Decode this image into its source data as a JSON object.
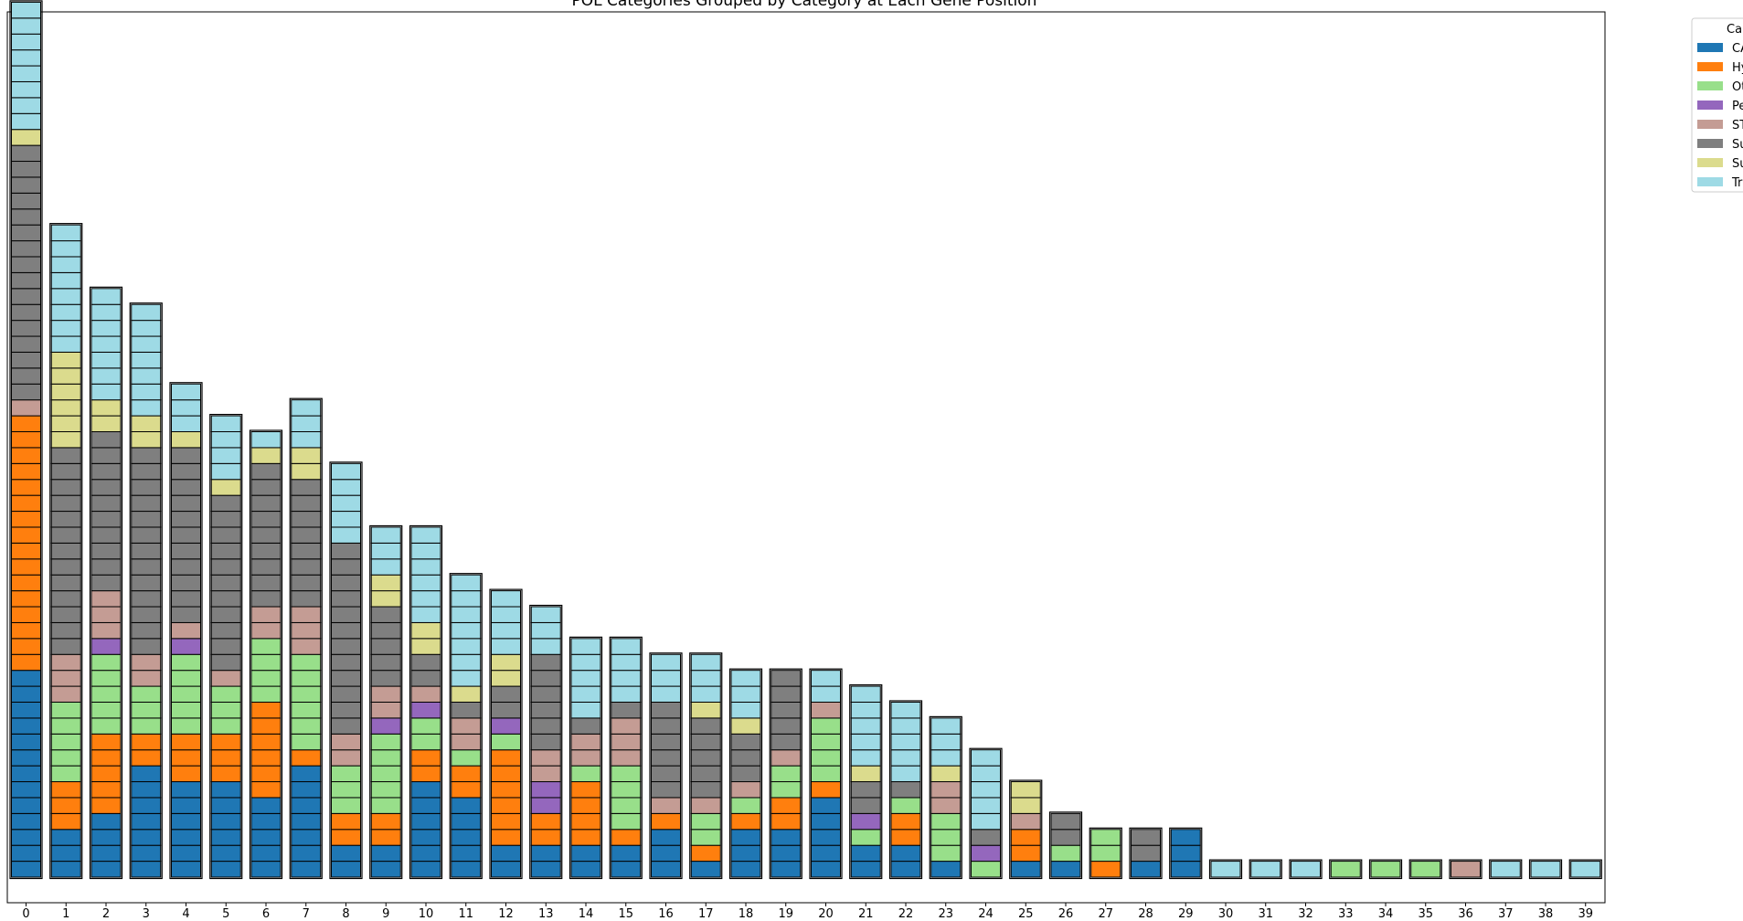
{
  "chart_data": {
    "type": "bar",
    "title": "POL Categories Grouped by Category at Each Gene Position",
    "xlabel": "",
    "ylabel": "",
    "categories": [
      "0",
      "1",
      "2",
      "3",
      "4",
      "5",
      "6",
      "7",
      "8",
      "9",
      "10",
      "11",
      "12",
      "13",
      "14",
      "15",
      "16",
      "17",
      "18",
      "19",
      "20",
      "21",
      "22",
      "23",
      "24",
      "25",
      "26",
      "27",
      "28",
      "29",
      "30",
      "31",
      "32",
      "33",
      "34",
      "35",
      "36",
      "37",
      "38",
      "39"
    ],
    "legend": {
      "title": "Ca",
      "placement": "outside-top-right",
      "entries": [
        "CA",
        "Hy",
        "Ot",
        "Pe",
        "ST",
        "Su",
        "Su",
        "Tr"
      ]
    },
    "colors": [
      "#1f77b4",
      "#ff7f0e",
      "#98df8a",
      "#9467bd",
      "#c49c94",
      "#7f7f7f",
      "#dbdb8d",
      "#9edae5"
    ],
    "stacks": [
      [
        0,
        0,
        0,
        0,
        0,
        0,
        0,
        0,
        0,
        0,
        0,
        0,
        0,
        1,
        1,
        1,
        1,
        1,
        1,
        1,
        1,
        1,
        1,
        1,
        1,
        1,
        1,
        1,
        1,
        4,
        5,
        5,
        5,
        5,
        5,
        5,
        5,
        5,
        5,
        5,
        5,
        5,
        5,
        5,
        5,
        5,
        6,
        7,
        7,
        7,
        7,
        7,
        7,
        7,
        7
      ],
      [
        0,
        0,
        0,
        1,
        1,
        1,
        2,
        2,
        2,
        2,
        2,
        4,
        4,
        4,
        5,
        5,
        5,
        5,
        5,
        5,
        5,
        5,
        5,
        5,
        5,
        5,
        5,
        6,
        6,
        6,
        6,
        6,
        6,
        7,
        7,
        7,
        7,
        7,
        7,
        7,
        7
      ],
      [
        0,
        0,
        0,
        0,
        1,
        1,
        1,
        1,
        1,
        2,
        2,
        2,
        2,
        2,
        3,
        4,
        4,
        4,
        5,
        5,
        5,
        5,
        5,
        5,
        5,
        5,
        5,
        5,
        6,
        6,
        7,
        7,
        7,
        7,
        7,
        7,
        7
      ],
      [
        0,
        0,
        0,
        0,
        0,
        0,
        0,
        1,
        1,
        2,
        2,
        2,
        4,
        4,
        5,
        5,
        5,
        5,
        5,
        5,
        5,
        5,
        5,
        5,
        5,
        5,
        5,
        6,
        6,
        7,
        7,
        7,
        7,
        7,
        7,
        7
      ],
      [
        0,
        0,
        0,
        0,
        0,
        0,
        1,
        1,
        1,
        2,
        2,
        2,
        2,
        2,
        3,
        4,
        5,
        5,
        5,
        5,
        5,
        5,
        5,
        5,
        5,
        5,
        5,
        6,
        7,
        7,
        7
      ],
      [
        0,
        0,
        0,
        0,
        0,
        0,
        1,
        1,
        1,
        2,
        2,
        2,
        4,
        5,
        5,
        5,
        5,
        5,
        5,
        5,
        5,
        5,
        5,
        5,
        6,
        7,
        7,
        7,
        7
      ],
      [
        0,
        0,
        0,
        0,
        0,
        1,
        1,
        1,
        1,
        1,
        1,
        2,
        2,
        2,
        2,
        4,
        4,
        5,
        5,
        5,
        5,
        5,
        5,
        5,
        5,
        5,
        6,
        7
      ],
      [
        0,
        0,
        0,
        0,
        0,
        0,
        0,
        1,
        2,
        2,
        2,
        2,
        2,
        2,
        4,
        4,
        4,
        5,
        5,
        5,
        5,
        5,
        5,
        5,
        5,
        6,
        6,
        7,
        7,
        7
      ],
      [
        0,
        0,
        1,
        1,
        2,
        2,
        2,
        4,
        4,
        5,
        5,
        5,
        5,
        5,
        5,
        5,
        5,
        5,
        5,
        5,
        5,
        7,
        7,
        7,
        7,
        7
      ],
      [
        0,
        0,
        1,
        1,
        2,
        2,
        2,
        2,
        2,
        3,
        4,
        4,
        5,
        5,
        5,
        5,
        5,
        6,
        6,
        7,
        7,
        7
      ],
      [
        0,
        0,
        0,
        0,
        0,
        0,
        1,
        1,
        2,
        2,
        3,
        4,
        5,
        5,
        6,
        6,
        7,
        7,
        7,
        7,
        7,
        7
      ],
      [
        0,
        0,
        0,
        0,
        0,
        1,
        1,
        2,
        4,
        4,
        5,
        6,
        7,
        7,
        7,
        7,
        7,
        7,
        7
      ],
      [
        0,
        0,
        1,
        1,
        1,
        1,
        1,
        1,
        2,
        3,
        5,
        5,
        6,
        6,
        7,
        7,
        7,
        7
      ],
      [
        0,
        0,
        1,
        1,
        3,
        3,
        4,
        4,
        5,
        5,
        5,
        5,
        5,
        5,
        7,
        7,
        7
      ],
      [
        0,
        0,
        1,
        1,
        1,
        1,
        2,
        4,
        4,
        5,
        7,
        7,
        7,
        7,
        7
      ],
      [
        0,
        0,
        1,
        2,
        2,
        2,
        2,
        4,
        4,
        4,
        5,
        7,
        7,
        7,
        7
      ],
      [
        0,
        0,
        0,
        1,
        4,
        5,
        5,
        5,
        5,
        5,
        5,
        7,
        7,
        7
      ],
      [
        0,
        1,
        2,
        2,
        4,
        5,
        5,
        5,
        5,
        5,
        6,
        7,
        7,
        7
      ],
      [
        0,
        0,
        0,
        1,
        2,
        4,
        5,
        5,
        5,
        6,
        7,
        7,
        7
      ],
      [
        0,
        0,
        0,
        1,
        1,
        2,
        2,
        4,
        5,
        5,
        5,
        5,
        5
      ],
      [
        0,
        0,
        0,
        0,
        0,
        1,
        2,
        2,
        2,
        2,
        4,
        7,
        7
      ],
      [
        0,
        0,
        2,
        3,
        5,
        5,
        6,
        7,
        7,
        7,
        7,
        7
      ],
      [
        0,
        0,
        1,
        1,
        2,
        5,
        7,
        7,
        7,
        7,
        7
      ],
      [
        0,
        2,
        2,
        2,
        4,
        4,
        6,
        7,
        7,
        7
      ],
      [
        2,
        3,
        5,
        7,
        7,
        7,
        7,
        7
      ],
      [
        0,
        1,
        1,
        4,
        6,
        6
      ],
      [
        0,
        2,
        5,
        5
      ],
      [
        1,
        2,
        2
      ],
      [
        0,
        5,
        5
      ],
      [
        0,
        0,
        0
      ],
      [
        7
      ],
      [
        7
      ],
      [
        7
      ],
      [
        2
      ],
      [
        2
      ],
      [
        2
      ],
      [
        4
      ],
      [
        7
      ],
      [
        7
      ],
      [
        7
      ]
    ],
    "ylim": [
      0,
      56
    ]
  }
}
